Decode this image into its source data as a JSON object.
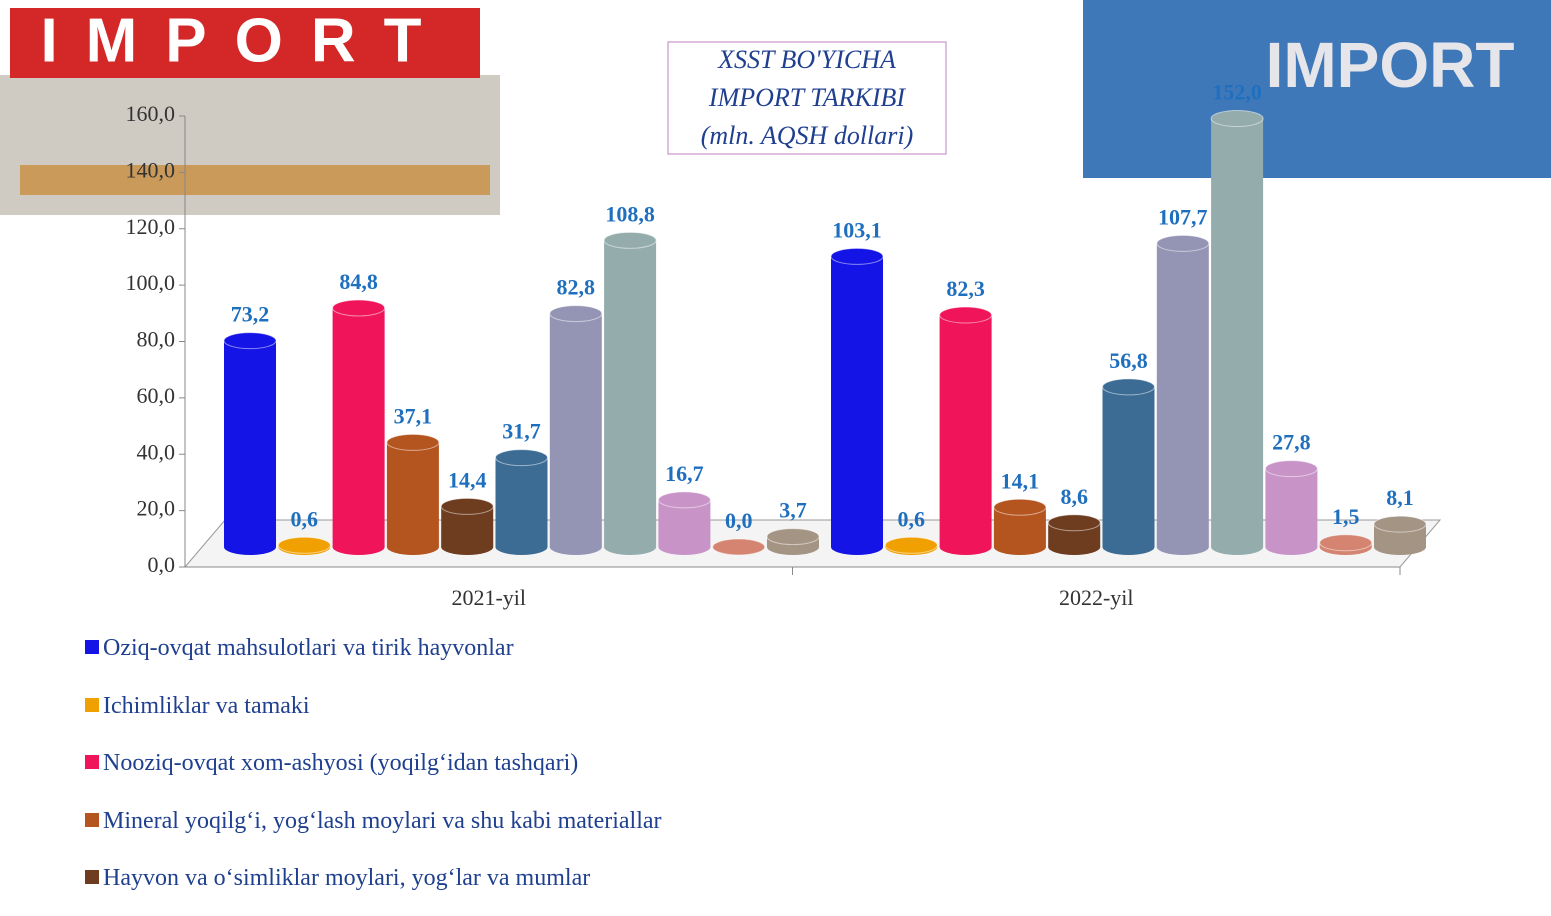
{
  "decor_labels": [
    "IMPORT",
    "IMPORT"
  ],
  "chart_data": {
    "type": "bar3d",
    "title": [
      "XSST BO'YICHA",
      "IMPORT TARKIBI",
      "(mln. AQSH dollari)"
    ],
    "categories": [
      "2021-yil",
      "2022-yil"
    ],
    "ylim": [
      0,
      160
    ],
    "yticks": [
      {
        "value": 0,
        "label": "0,0"
      },
      {
        "value": 20,
        "label": "20,0"
      },
      {
        "value": 40,
        "label": "40,0"
      },
      {
        "value": 60,
        "label": "60,0"
      },
      {
        "value": 80,
        "label": "80,0"
      },
      {
        "value": 100,
        "label": "100,0"
      },
      {
        "value": 120,
        "label": "120,0"
      },
      {
        "value": 140,
        "label": "140,0"
      },
      {
        "value": 160,
        "label": "160,0"
      }
    ],
    "grid": false,
    "series": [
      {
        "name": "Oziq-ovqat mahsulotlari va tirik hayvonlar",
        "color": "#1414e6",
        "values": [
          73.2,
          103.1
        ],
        "value_labels": [
          "73,2",
          "103,1"
        ]
      },
      {
        "name": "Ichimliklar va tamaki",
        "color": "#f0a000",
        "values": [
          0.6,
          0.6
        ],
        "value_labels": [
          "0,6",
          "0,6"
        ]
      },
      {
        "name": "Nooziq-ovqat xom-ashyosi (yoqilg‘idan tashqari)",
        "color": "#f0145a",
        "values": [
          84.8,
          82.3
        ],
        "value_labels": [
          "84,8",
          "82,3"
        ]
      },
      {
        "name": "Mineral yoqilg‘i, yog‘lash moylari va shu kabi materiallar",
        "color": "#b4541e",
        "values": [
          37.1,
          14.1
        ],
        "value_labels": [
          "37,1",
          "14,1"
        ]
      },
      {
        "name": "Hayvon va o‘simliklar moylari, yog‘lar va mumlar",
        "color": "#6e3c1e",
        "values": [
          14.4,
          8.6
        ],
        "value_labels": [
          "14,4",
          "8,6"
        ]
      },
      {
        "color": "#3c6c94",
        "values": [
          31.7,
          56.8
        ],
        "value_labels": [
          "31,7",
          "56,8"
        ]
      },
      {
        "color": "#9494b4",
        "values": [
          82.8,
          107.7
        ],
        "value_labels": [
          "82,8",
          "107,7"
        ]
      },
      {
        "color": "#94acac",
        "values": [
          108.8,
          152.0
        ],
        "value_labels": [
          "108,8",
          "152,0"
        ]
      },
      {
        "color": "#c894c8",
        "values": [
          16.7,
          27.8
        ],
        "value_labels": [
          "16,7",
          "27,8"
        ]
      },
      {
        "color": "#d48470",
        "values": [
          0.0,
          1.5
        ],
        "value_labels": [
          "0,0",
          "1,5"
        ]
      },
      {
        "color": "#a49484",
        "values": [
          3.7,
          8.1
        ],
        "value_labels": [
          "3,7",
          "8,1"
        ]
      }
    ]
  }
}
